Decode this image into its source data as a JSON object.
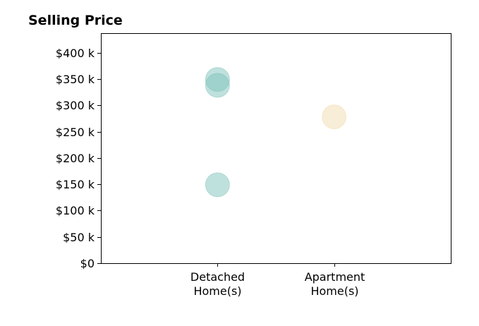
{
  "chart_data": {
    "type": "scatter",
    "title": "Selling Price",
    "xlabel": "",
    "ylabel": "",
    "categories": [
      [
        "Detached",
        "Home(s)"
      ],
      [
        "Apartment",
        "Home(s)"
      ]
    ],
    "y_ticks": [
      {
        "value": 0,
        "label": "$0"
      },
      {
        "value": 50000,
        "label": "$50 k"
      },
      {
        "value": 100000,
        "label": "$100 k"
      },
      {
        "value": 150000,
        "label": "$150 k"
      },
      {
        "value": 200000,
        "label": "$200 k"
      },
      {
        "value": 250000,
        "label": "$250 k"
      },
      {
        "value": 300000,
        "label": "$300 k"
      },
      {
        "value": 350000,
        "label": "$350 k"
      },
      {
        "value": 400000,
        "label": "$400 k"
      }
    ],
    "ylim": [
      0,
      437000
    ],
    "xlim": [
      -1,
      2
    ],
    "grid": false,
    "points": [
      {
        "category": 0,
        "y": 349000,
        "color": "#7fc4bb"
      },
      {
        "category": 0,
        "y": 338000,
        "color": "#7fc4bb"
      },
      {
        "category": 0,
        "y": 149000,
        "color": "#7fc4bb"
      },
      {
        "category": 1,
        "y": 278000,
        "color": "#f2dcae"
      }
    ]
  }
}
